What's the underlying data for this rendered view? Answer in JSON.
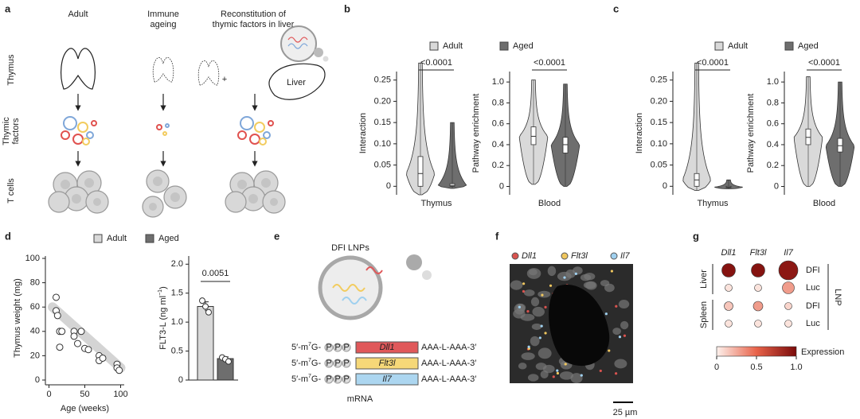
{
  "panel_a": {
    "label": "a",
    "columns": [
      [
        "Adult"
      ],
      [
        "Immune",
        "ageing"
      ],
      [
        "Reconstitution of",
        "thymic factors in liver"
      ]
    ],
    "rows": [
      [
        "Thymus"
      ],
      [
        "Thymic",
        "factors"
      ],
      [
        "T cells"
      ]
    ],
    "organ": "Liver",
    "plus": "+"
  },
  "panel_e": {
    "label": "e",
    "title": "DFI LNPs",
    "constructs": [
      {
        "cap": "5′-m",
        "cap_sup": "7",
        "cap_end": "G-",
        "caps": [
          "P",
          "P",
          "P"
        ],
        "gene": "Dll1",
        "color": "#e0585a",
        "tail": "AAA-L-AAA-3′"
      },
      {
        "cap": "5′-m",
        "cap_sup": "7",
        "cap_end": "G-",
        "caps": [
          "P",
          "P",
          "P"
        ],
        "gene": "Flt3l",
        "color": "#f6d878",
        "tail": "AAA-L-AAA-3′"
      },
      {
        "cap": "5′-m",
        "cap_sup": "7",
        "cap_end": "G-",
        "caps": [
          "P",
          "P",
          "P"
        ],
        "gene": "Il7",
        "color": "#acd6f0",
        "tail": "AAA-L-AAA-3′"
      }
    ],
    "caption": "mRNA"
  },
  "panel_f": {
    "label": "f",
    "legend": [
      {
        "name": "Dll1",
        "color": "#d9534f"
      },
      {
        "name": "Flt3l",
        "color": "#f0c75e"
      },
      {
        "name": "Il7",
        "color": "#9fd0ef"
      }
    ],
    "scale": "25 µm"
  },
  "chart_data": [
    {
      "type": "violin",
      "label": "b",
      "series": [
        {
          "name": "Adult",
          "color": "#d9d9d9"
        },
        {
          "name": "Aged",
          "color": "#6e6e6e"
        }
      ],
      "plots": [
        {
          "ylabel": "Interaction",
          "category": "Thymus",
          "pvalue": "<0.0001",
          "ylim": [
            -0.02,
            0.27
          ],
          "yticks": [
            0,
            0.05,
            {
              "value": 0.1,
              "label": "0.10"
            },
            0.15,
            {
              "value": 0.2,
              "label": "0.20"
            },
            0.25
          ],
          "stats": [
            {
              "min": -0.02,
              "q1": 0.0,
              "median": 0.03,
              "q3": 0.07,
              "max": 0.29
            },
            {
              "min": -0.005,
              "q1": 0.0,
              "median": 0.002,
              "q3": 0.006,
              "max": 0.15
            }
          ]
        },
        {
          "ylabel": "Pathway enrichment",
          "category": "Blood",
          "pvalue": "<0.0001",
          "ylim": [
            -0.08,
            1.1
          ],
          "yticks": [
            0,
            0.2,
            0.4,
            0.6,
            0.8,
            {
              "value": 1,
              "label": "1.0"
            }
          ],
          "stats": [
            {
              "min": 0.02,
              "q1": 0.4,
              "median": 0.48,
              "q3": 0.57,
              "max": 1.02
            },
            {
              "min": 0.0,
              "q1": 0.32,
              "median": 0.4,
              "q3": 0.47,
              "max": 0.98
            }
          ]
        }
      ]
    },
    {
      "type": "violin",
      "label": "c",
      "series": [
        {
          "name": "Adult",
          "color": "#d9d9d9"
        },
        {
          "name": "Aged",
          "color": "#6e6e6e"
        }
      ],
      "plots": [
        {
          "ylabel": "Interaction",
          "category": "Thymus",
          "pvalue": "<0.0001",
          "ylim": [
            -0.02,
            0.27
          ],
          "yticks": [
            0,
            0.05,
            {
              "value": 0.1,
              "label": "0.10"
            },
            0.15,
            {
              "value": 0.2,
              "label": "0.20"
            },
            0.25
          ],
          "stats": [
            {
              "min": -0.01,
              "q1": 0.0,
              "median": 0.015,
              "q3": 0.03,
              "max": 0.29
            },
            {
              "min": -0.006,
              "q1": -0.003,
              "median": -0.002,
              "q3": 0.0,
              "max": 0.015
            }
          ]
        },
        {
          "ylabel": "Pathway enrichment",
          "category": "Blood",
          "pvalue": "<0.0001",
          "ylim": [
            -0.08,
            1.1
          ],
          "yticks": [
            0,
            0.2,
            0.4,
            0.6,
            0.8,
            {
              "value": 1,
              "label": "1.0"
            }
          ],
          "stats": [
            {
              "min": 0.0,
              "q1": 0.4,
              "median": 0.47,
              "q3": 0.55,
              "max": 1.05
            },
            {
              "min": 0.0,
              "q1": 0.33,
              "median": 0.39,
              "q3": 0.46,
              "max": 1.0
            }
          ]
        }
      ]
    },
    {
      "type": "scatter",
      "label": "d",
      "xlabel": "Age (weeks)",
      "ylabel": "Thymus weight (mg)",
      "xlim": [
        -5,
        105
      ],
      "ylim": [
        0,
        100
      ],
      "xticks": [
        0,
        50,
        100
      ],
      "yticks": [
        0,
        20,
        40,
        60,
        80,
        100
      ],
      "x": [
        10,
        10,
        12,
        15,
        15,
        18,
        35,
        35,
        40,
        45,
        50,
        55,
        70,
        70,
        75,
        95,
        95,
        98
      ],
      "values": [
        68,
        57,
        53,
        40,
        27,
        40,
        40,
        36,
        30,
        40,
        26,
        25,
        20,
        16,
        18,
        13,
        10,
        8
      ],
      "fit": {
        "x": [
          5,
          100
        ],
        "y": [
          60,
          10
        ]
      }
    },
    {
      "type": "bar",
      "ylabel": "FLT3-L (ng ml",
      "ylabel_sup": "−1",
      "ylabel_end": ")",
      "ylim": [
        0,
        2.1
      ],
      "yticks": [
        0,
        0.5,
        {
          "value": 1,
          "label": "1.0"
        },
        1.5,
        {
          "value": 2,
          "label": "2.0"
        }
      ],
      "pvalue": "0.0051",
      "series": [
        {
          "name": "Adult",
          "color": "#d9d9d9",
          "value": 1.27,
          "error": 0.08,
          "points": [
            1.37,
            1.27,
            1.17
          ]
        },
        {
          "name": "Aged",
          "color": "#6e6e6e",
          "value": 0.37,
          "error": 0.03,
          "points": [
            0.39,
            0.36,
            0.32
          ]
        }
      ]
    },
    {
      "type": "dotplot",
      "label": "g",
      "columns": [
        "Dll1",
        "Flt3l",
        "Il7"
      ],
      "groups": [
        {
          "name": "Liver",
          "rows": [
            "DFI",
            "Luc"
          ]
        },
        {
          "name": "Spleen",
          "rows": [
            "DFI",
            "Luc"
          ]
        }
      ],
      "side_label": "LNP",
      "values": [
        [
          0.95,
          0.95,
          0.92
        ],
        [
          0.05,
          0.05,
          0.3
        ],
        [
          0.15,
          0.3,
          0.1
        ],
        [
          0.05,
          0.05,
          0.05
        ]
      ],
      "sizes": [
        [
          0.6,
          0.6,
          0.95
        ],
        [
          0.2,
          0.2,
          0.5
        ],
        [
          0.3,
          0.35,
          0.2
        ],
        [
          0.2,
          0.2,
          0.2
        ]
      ],
      "colormap": [
        "#fdf1ec",
        "#e8634a",
        "#7a0a0a"
      ],
      "colorbar": {
        "label": "Expression",
        "lim": [
          0,
          1
        ],
        "ticks": [
          0,
          0.5,
          {
            "value": 1,
            "label": "1.0"
          }
        ]
      }
    }
  ]
}
